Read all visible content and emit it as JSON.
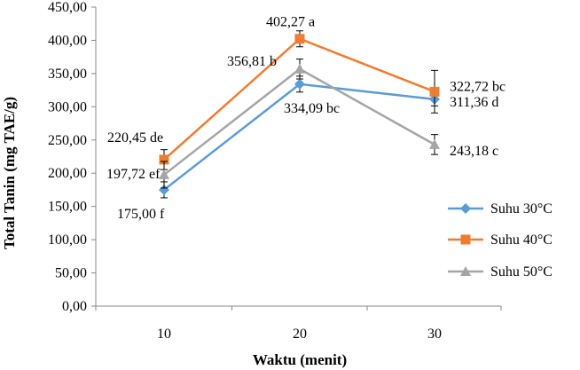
{
  "chart_data": {
    "type": "line",
    "xlabel": "Waktu (menit)",
    "ylabel": "Total Tanin (mg TAE/g)",
    "categories": [
      "10",
      "20",
      "30"
    ],
    "ylim": [
      0,
      450
    ],
    "yticks": [
      "0,00",
      "50,00",
      "100,00",
      "150,00",
      "200,00",
      "250,00",
      "300,00",
      "350,00",
      "400,00",
      "450,00"
    ],
    "grid": false,
    "legend_position": "right",
    "series": [
      {
        "name": "Suhu 30°C",
        "color": "#5B9BD5",
        "marker": "diamond",
        "values": [
          175.0,
          334.09,
          311.36
        ],
        "errors": [
          12,
          12,
          10
        ],
        "labels": [
          "175,00 f",
          "334,09 bc",
          "311,36 d"
        ]
      },
      {
        "name": "Suhu 40°C",
        "color": "#ED7D31",
        "marker": "square",
        "values": [
          220.45,
          402.27,
          322.72
        ],
        "errors": [
          15,
          12,
          32
        ],
        "labels": [
          "220,45 de",
          "402,27 a",
          "322,72 bc"
        ]
      },
      {
        "name": "Suhu 50°C",
        "color": "#A5A5A5",
        "marker": "triangle",
        "values": [
          197.72,
          356.81,
          243.18
        ],
        "errors": [
          20,
          15,
          15
        ],
        "labels": [
          "197,72 ef",
          "356,81 b",
          "243,18 c"
        ]
      }
    ]
  }
}
